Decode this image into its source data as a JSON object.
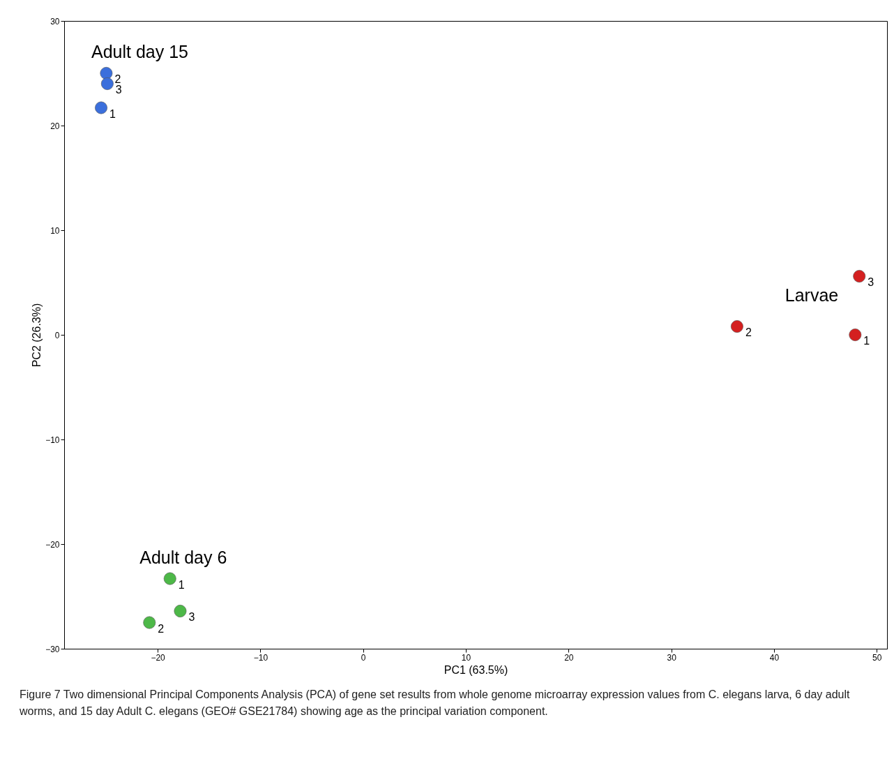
{
  "chart_data": {
    "type": "scatter",
    "xlabel": "PC1 (63.5%)",
    "ylabel": "PC2 (26.3%)",
    "xlim": [
      -29.1,
      51
    ],
    "ylim": [
      -30,
      30
    ],
    "xticks": [
      -20,
      -10,
      0,
      10,
      20,
      30,
      40,
      50
    ],
    "yticks": [
      -30,
      -20,
      -10,
      0,
      10,
      20,
      30
    ],
    "grid": false,
    "legend": false,
    "marker": "circle",
    "series": [
      {
        "name": "Adult day 15",
        "color": "#3b6fdc",
        "x": [
          -25.5,
          -25.0,
          -24.9
        ],
        "values": [
          21.7,
          25.0,
          24.0
        ]
      },
      {
        "name": "Larvae",
        "color": "#d42020",
        "x": [
          47.9,
          36.4,
          48.3
        ],
        "values": [
          0.0,
          0.8,
          5.6
        ]
      },
      {
        "name": "Adult day 6",
        "color": "#4db848",
        "x": [
          -18.8,
          -20.8,
          -17.8
        ],
        "values": [
          -23.3,
          -27.5,
          -26.4
        ]
      }
    ],
    "annotations": [
      {
        "text": "1",
        "x": -25.5,
        "y": 21.7
      },
      {
        "text": "2",
        "x": -25.0,
        "y": 25.0
      },
      {
        "text": "3",
        "x": -24.9,
        "y": 24.0
      },
      {
        "text": "1",
        "x": 47.9,
        "y": 0.0
      },
      {
        "text": "2",
        "x": 36.4,
        "y": 0.8
      },
      {
        "text": "3",
        "x": 48.3,
        "y": 5.6
      },
      {
        "text": "1",
        "x": -18.8,
        "y": -23.3
      },
      {
        "text": "2",
        "x": -20.8,
        "y": -27.5
      },
      {
        "text": "3",
        "x": -17.8,
        "y": -26.4
      },
      "Figure 7 Two dimensional Principal Components Analysis (PCA) of gene set results from whole genome microarray expression values from C. elegans larva, 6 day adult worms, and 15 day Adult C. elegans (GEO# GSE21784) showing age as the principal variation component."
    ]
  }
}
